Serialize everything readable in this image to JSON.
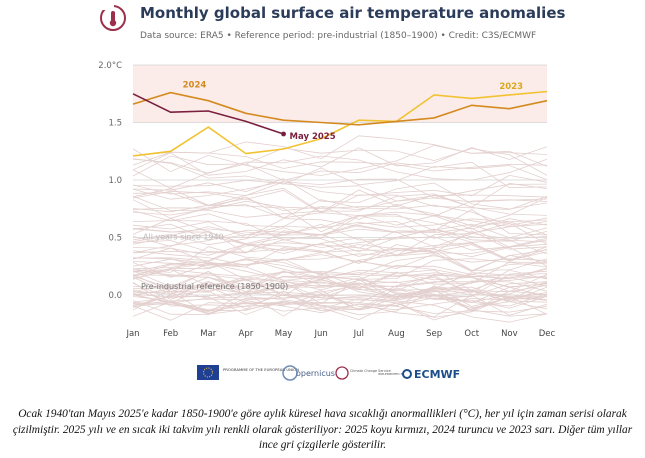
{
  "title": "Monthly global surface air temperature anomalies",
  "subtitle": "Data source: ERA5 • Reference period: pre-industrial (1850–1900) • Credit: C3S/ECMWF",
  "caption": "Ocak 1940'tan Mayıs 2025'e kadar 1850-1900'e göre aylık küresel hava sıcaklığı anormallikleri (°C), her yıl için zaman serisi olarak çizilmiştir. 2025 yılı ve en sıcak iki takvim yılı renkli olarak gösteriliyor: 2025 koyu kırmızı, 2024 turuncu ve 2023 sarı. Diğer tüm yıllar ince gri çizgilerle gösterilir.",
  "logos": {
    "eu": "PROGRAMME OF THE EUROPEAN UNION",
    "copernicus": "opernicus",
    "c3s": "Climate Change Service",
    "implemented": "IMPLEMENTED BY",
    "ecmwf": "ECMWF"
  },
  "chart_data": {
    "type": "line",
    "categories": [
      "Jan",
      "Feb",
      "Mar",
      "Apr",
      "May",
      "Jun",
      "Jul",
      "Aug",
      "Sep",
      "Oct",
      "Nov",
      "Dec"
    ],
    "ylim": [
      -0.2,
      2.0
    ],
    "yticks": [
      0.0,
      0.5,
      1.0,
      1.5,
      2.0
    ],
    "ytick_labels": [
      "0.0",
      "0.5",
      "1.0",
      "1.5",
      "2.0°C"
    ],
    "grid": true,
    "band": [
      1.5,
      2.0
    ],
    "annotations": {
      "all_years": "All years since 1940",
      "reference": "Pre-industrial reference (1850–1900)"
    },
    "colors": {
      "y2025": "#7a1f3d",
      "y2024": "#d48a1e",
      "y2023": "#f1c232",
      "other": "#e3d0ce",
      "band": "#fbecea"
    },
    "highlight": [
      {
        "name": "2023",
        "values": [
          1.21,
          1.25,
          1.46,
          1.23,
          1.27,
          1.36,
          1.52,
          1.51,
          1.74,
          1.71,
          1.74,
          1.77
        ]
      },
      {
        "name": "2024",
        "values": [
          1.66,
          1.76,
          1.69,
          1.58,
          1.52,
          1.5,
          1.48,
          1.51,
          1.54,
          1.65,
          1.62,
          1.69
        ]
      },
      {
        "name": "May 2025",
        "values": [
          1.75,
          1.59,
          1.6,
          1.51,
          1.4
        ]
      }
    ]
  }
}
